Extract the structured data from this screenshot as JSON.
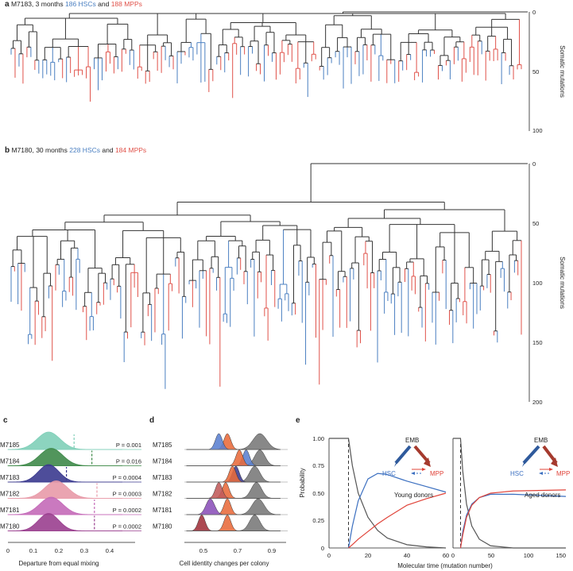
{
  "colors": {
    "hsc": "#4a7fc1",
    "mpp": "#e0524a",
    "branch": "#333333",
    "emb": "#555555"
  },
  "panel_a": {
    "letter": "a",
    "title_prefix": "M7183, 3 months",
    "hsc_label": "186 HSCs",
    "and_label": "and",
    "mpp_label": "188 MPPs",
    "ylabel": "Somatic mutations",
    "yticks": [
      "0",
      "50",
      "100"
    ]
  },
  "panel_b": {
    "letter": "b",
    "title_prefix": "M7180, 30 months",
    "hsc_label": "228 HSCs",
    "and_label": "and",
    "mpp_label": "184 MPPs",
    "ylabel": "Somatic mutations",
    "yticks": [
      "0",
      "50",
      "100",
      "150",
      "200"
    ]
  },
  "panel_c": {
    "letter": "c",
    "xlabel": "Departure from equal mixing",
    "xticks": [
      "0",
      "0.1",
      "0.2",
      "0.3",
      "0.4"
    ]
  },
  "panel_d": {
    "letter": "d",
    "xlabel": "Cell identity changes per colony",
    "xticks": [
      "0.5",
      "0.7",
      "0.9"
    ]
  },
  "panel_e": {
    "letter": "e",
    "ylabel": "Probability",
    "xlabel": "Molecular time (mutation number)",
    "yticks": [
      "0",
      "0.25",
      "0.50",
      "0.75",
      "1.00"
    ],
    "left_xticks": [
      "0",
      "20",
      "40",
      "60"
    ],
    "right_xticks": [
      "0",
      "50",
      "100",
      "150"
    ],
    "left_note": "Young donors",
    "right_note": "Aged donors",
    "node_emb": "EMB",
    "node_hsc": "HSC",
    "node_mpp": "MPP"
  },
  "chart_data": [
    {
      "type": "tree",
      "id": "a",
      "title": "M7183, 3 months 186 HSCs and 188 MPPs",
      "ylabel": "Somatic mutations",
      "ylim": [
        0,
        100
      ],
      "y_inverted": true,
      "leaves": {
        "HSC": 186,
        "MPP": 188
      }
    },
    {
      "type": "tree",
      "id": "b",
      "title": "M7180, 30 months 228 HSCs and 184 MPPs",
      "ylabel": "Somatic mutations",
      "ylim": [
        0,
        200
      ],
      "y_inverted": true,
      "leaves": {
        "HSC": 228,
        "MPP": 184
      }
    },
    {
      "type": "ridgeline",
      "id": "c",
      "xlabel": "Departure from equal mixing",
      "xlim": [
        0,
        0.4
      ],
      "series": [
        {
          "name": "M7185",
          "mean": 0.16,
          "sd": 0.045,
          "observed": 0.26,
          "p": "P = 0.001",
          "color": "#7fcfb8"
        },
        {
          "name": "M7184",
          "mean": 0.17,
          "sd": 0.045,
          "observed": 0.33,
          "p": "P = 0.016",
          "color": "#3f8a4a"
        },
        {
          "name": "M7183",
          "mean": 0.16,
          "sd": 0.04,
          "observed": 0.23,
          "p": "P = 0.0004",
          "color": "#3b3a8f"
        },
        {
          "name": "M7182",
          "mean": 0.19,
          "sd": 0.045,
          "observed": 0.35,
          "p": "P = 0.0003",
          "color": "#e89aa8"
        },
        {
          "name": "M7181",
          "mean": 0.17,
          "sd": 0.045,
          "observed": 0.34,
          "p": "P = 0.0002",
          "color": "#c46ab8"
        },
        {
          "name": "M7180",
          "mean": 0.16,
          "sd": 0.04,
          "observed": 0.34,
          "p": "P = 0.0002",
          "color": "#9a3f8f"
        }
      ]
    },
    {
      "type": "ridgeline",
      "id": "d",
      "xlabel": "Cell identity changes per colony",
      "xlim": [
        0.35,
        0.95
      ],
      "series": [
        {
          "name": "M7185",
          "peaks": [
            {
              "mean": 0.59,
              "sd": 0.02,
              "color": "#5a7fd0"
            },
            {
              "mean": 0.64,
              "sd": 0.02,
              "color": "#e86a3a"
            },
            {
              "mean": 0.83,
              "sd": 0.04,
              "color": "#777777"
            }
          ]
        },
        {
          "name": "M7184",
          "peaks": [
            {
              "mean": 0.71,
              "sd": 0.02,
              "color": "#e86a3a"
            },
            {
              "mean": 0.75,
              "sd": 0.02,
              "color": "#5a7fd0"
            },
            {
              "mean": 0.83,
              "sd": 0.03,
              "color": "#777777"
            }
          ]
        },
        {
          "name": "M7183",
          "peaks": [
            {
              "mean": 0.67,
              "sd": 0.02,
              "color": "#e86a3a"
            },
            {
              "mean": 0.69,
              "sd": 0.02,
              "color": "#3b3a8f"
            },
            {
              "mean": 0.8,
              "sd": 0.03,
              "color": "#777777"
            }
          ]
        },
        {
          "name": "M7182",
          "peaks": [
            {
              "mean": 0.59,
              "sd": 0.02,
              "color": "#c05a5a"
            },
            {
              "mean": 0.63,
              "sd": 0.02,
              "color": "#e86a3a"
            },
            {
              "mean": 0.81,
              "sd": 0.03,
              "color": "#777777"
            }
          ]
        },
        {
          "name": "M7181",
          "peaks": [
            {
              "mean": 0.54,
              "sd": 0.025,
              "color": "#8a4fb8"
            },
            {
              "mean": 0.64,
              "sd": 0.02,
              "color": "#e86a3a"
            },
            {
              "mean": 0.82,
              "sd": 0.035,
              "color": "#777777"
            }
          ]
        },
        {
          "name": "M7180",
          "peaks": [
            {
              "mean": 0.49,
              "sd": 0.02,
              "color": "#a0303a"
            },
            {
              "mean": 0.64,
              "sd": 0.02,
              "color": "#e86a3a"
            },
            {
              "mean": 0.8,
              "sd": 0.03,
              "color": "#777777"
            }
          ]
        }
      ]
    },
    {
      "type": "line",
      "id": "e-young",
      "xlim": [
        0,
        60
      ],
      "ylim": [
        0,
        1
      ],
      "dashed_x": 10,
      "series": [
        {
          "name": "EMB",
          "color": "#555555",
          "x": [
            0,
            10,
            12,
            15,
            20,
            25,
            30,
            40,
            50,
            60
          ],
          "y": [
            1,
            1,
            0.75,
            0.5,
            0.28,
            0.16,
            0.09,
            0.03,
            0.01,
            0.0
          ]
        },
        {
          "name": "HSC",
          "color": "#3b6fc0",
          "x": [
            10,
            12,
            15,
            20,
            25,
            30,
            40,
            50,
            60
          ],
          "y": [
            0,
            0.2,
            0.43,
            0.63,
            0.68,
            0.67,
            0.61,
            0.56,
            0.51
          ]
        },
        {
          "name": "MPP",
          "color": "#e0443a",
          "x": [
            10,
            12,
            15,
            20,
            25,
            30,
            40,
            50,
            60
          ],
          "y": [
            0,
            0.03,
            0.08,
            0.15,
            0.22,
            0.28,
            0.39,
            0.45,
            0.5
          ]
        }
      ]
    },
    {
      "type": "line",
      "id": "e-aged",
      "xlim": [
        0,
        150
      ],
      "ylim": [
        0,
        1
      ],
      "dashed_x": 10,
      "series": [
        {
          "name": "EMB",
          "color": "#555555",
          "x": [
            0,
            10,
            13,
            18,
            25,
            35,
            50,
            80,
            150
          ],
          "y": [
            1,
            1,
            0.7,
            0.4,
            0.2,
            0.08,
            0.02,
            0.0,
            0.0
          ]
        },
        {
          "name": "HSC",
          "color": "#3b6fc0",
          "x": [
            10,
            13,
            18,
            25,
            35,
            50,
            80,
            150
          ],
          "y": [
            0,
            0.15,
            0.3,
            0.4,
            0.46,
            0.49,
            0.49,
            0.47
          ]
        },
        {
          "name": "MPP",
          "color": "#e0443a",
          "x": [
            10,
            13,
            18,
            25,
            35,
            50,
            80,
            150
          ],
          "y": [
            0,
            0.12,
            0.28,
            0.39,
            0.46,
            0.5,
            0.52,
            0.53
          ]
        }
      ]
    }
  ]
}
